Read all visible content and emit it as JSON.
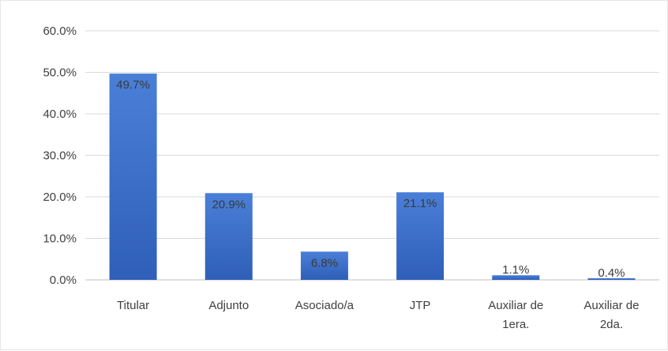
{
  "chart_data": {
    "type": "bar",
    "title": "",
    "xlabel": "",
    "ylabel": "",
    "categories": [
      "Titular",
      "Adjunto",
      "Asociado/a",
      "JTP",
      "Auxiliar de 1era.",
      "Auxiliar de 2da."
    ],
    "category_lines": [
      [
        "Titular"
      ],
      [
        "Adjunto"
      ],
      [
        "Asociado/a"
      ],
      [
        "JTP"
      ],
      [
        "Auxiliar de",
        "1era."
      ],
      [
        "Auxiliar de",
        "2da."
      ]
    ],
    "values": [
      49.7,
      20.9,
      6.8,
      21.1,
      1.1,
      0.4
    ],
    "data_labels": [
      "49.7%",
      "20.9%",
      "6.8%",
      "21.1%",
      "1.1%",
      "0.4%"
    ],
    "ylim": [
      0,
      60
    ],
    "yticks": [
      0,
      10,
      20,
      30,
      40,
      50,
      60
    ],
    "ytick_labels": [
      "0.0%",
      "10.0%",
      "20.0%",
      "30.0%",
      "40.0%",
      "50.0%",
      "60.0%"
    ],
    "grid": true,
    "legend": "none",
    "bar_color_top": "#4a7fd8",
    "bar_color_bottom": "#2f5fb8"
  }
}
